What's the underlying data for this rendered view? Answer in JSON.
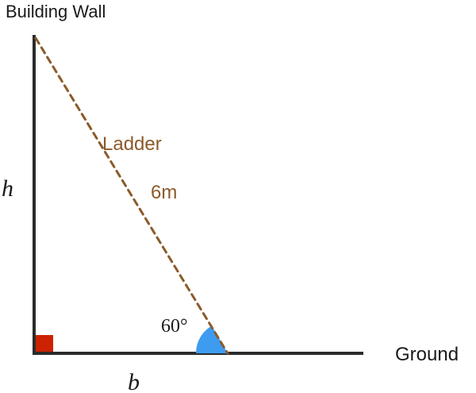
{
  "diagram": {
    "wall_label": "Building Wall",
    "ground_label": "Ground",
    "ladder_label": "Ladder",
    "ladder_length": "6m",
    "angle_label": "60°",
    "height_label": "h",
    "base_label": "b"
  },
  "colors": {
    "structure": "#2b2b2b",
    "ladder": "#8b5a2b",
    "angle_fill": "#3d9cf0",
    "right_angle_fill": "#cc2200",
    "text": "#1a1a1a"
  }
}
